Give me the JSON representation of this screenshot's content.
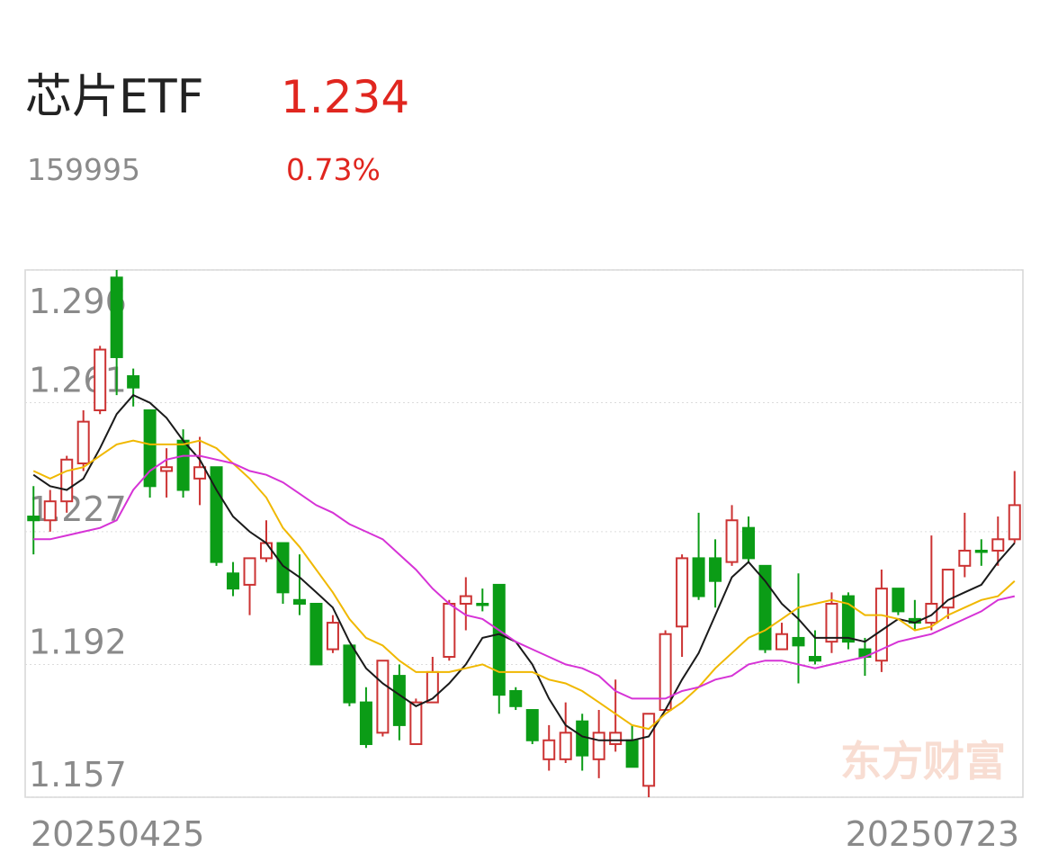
{
  "chart_data": {
    "type": "candlestick",
    "title": "芯片ETF",
    "price": "1.234",
    "code": "159995",
    "change": "0.73%",
    "watermark": "东方财富",
    "categories": [
      "20250425",
      null,
      null,
      null,
      null,
      null,
      null,
      null,
      null,
      null,
      null,
      null,
      null,
      null,
      null,
      null,
      null,
      null,
      null,
      null,
      null,
      null,
      null,
      null,
      null,
      null,
      null,
      null,
      null,
      null,
      null,
      null,
      null,
      null,
      null,
      null,
      null,
      null,
      null,
      null,
      null,
      null,
      null,
      null,
      null,
      null,
      null,
      null,
      null,
      null,
      null,
      null,
      null,
      null,
      null,
      null,
      null,
      null,
      null,
      "20250723"
    ],
    "open": [
      1.231,
      1.23,
      1.235,
      1.245,
      1.259,
      1.294,
      1.268,
      1.259,
      1.243,
      1.251,
      1.241,
      1.244,
      1.216,
      1.213,
      1.22,
      1.224,
      1.209,
      1.208,
      1.196,
      1.197,
      1.182,
      1.174,
      1.189,
      1.171,
      1.182,
      1.194,
      1.208,
      1.208,
      1.213,
      1.185,
      1.18,
      1.167,
      1.167,
      1.177,
      1.167,
      1.171,
      1.172,
      1.16,
      1.18,
      1.202,
      1.22,
      1.22,
      1.219,
      1.228,
      1.218,
      1.196,
      1.199,
      1.194,
      1.198,
      1.21,
      1.196,
      1.193,
      1.212,
      1.204,
      1.203,
      1.207,
      1.218,
      1.222,
      1.222,
      1.225
    ],
    "high": [
      1.239,
      1.238,
      1.247,
      1.259,
      1.276,
      1.296,
      1.27,
      1.259,
      1.249,
      1.254,
      1.252,
      1.244,
      1.219,
      1.22,
      1.23,
      1.224,
      1.221,
      1.208,
      1.205,
      1.197,
      1.186,
      1.193,
      1.192,
      1.183,
      1.194,
      1.209,
      1.215,
      1.212,
      1.213,
      1.186,
      1.18,
      1.176,
      1.182,
      1.179,
      1.18,
      1.188,
      1.176,
      1.179,
      1.201,
      1.221,
      1.232,
      1.225,
      1.234,
      1.231,
      1.218,
      1.203,
      1.216,
      1.201,
      1.211,
      1.211,
      1.199,
      1.217,
      1.212,
      1.209,
      1.226,
      1.217,
      1.232,
      1.225,
      1.231,
      1.243
    ],
    "low": [
      1.221,
      1.227,
      1.232,
      1.243,
      1.258,
      1.263,
      1.26,
      1.236,
      1.236,
      1.236,
      1.234,
      1.218,
      1.21,
      1.205,
      1.219,
      1.208,
      1.205,
      1.192,
      1.195,
      1.181,
      1.17,
      1.173,
      1.172,
      1.171,
      1.182,
      1.193,
      1.201,
      1.206,
      1.179,
      1.18,
      1.171,
      1.164,
      1.166,
      1.164,
      1.162,
      1.169,
      1.165,
      1.157,
      1.18,
      1.194,
      1.209,
      1.207,
      1.218,
      1.219,
      1.195,
      1.196,
      1.187,
      1.192,
      1.195,
      1.196,
      1.189,
      1.19,
      1.205,
      1.201,
      1.201,
      1.204,
      1.215,
      1.218,
      1.218,
      1.224
    ],
    "close": [
      1.23,
      1.235,
      1.246,
      1.256,
      1.275,
      1.273,
      1.265,
      1.239,
      1.244,
      1.238,
      1.244,
      1.219,
      1.212,
      1.22,
      1.224,
      1.211,
      1.208,
      1.192,
      1.203,
      1.182,
      1.171,
      1.193,
      1.176,
      1.182,
      1.19,
      1.208,
      1.21,
      1.208,
      1.184,
      1.181,
      1.172,
      1.172,
      1.174,
      1.168,
      1.174,
      1.174,
      1.165,
      1.179,
      1.2,
      1.22,
      1.21,
      1.214,
      1.23,
      1.22,
      1.196,
      1.2,
      1.197,
      1.193,
      1.208,
      1.198,
      1.194,
      1.212,
      1.206,
      1.203,
      1.208,
      1.217,
      1.222,
      1.222,
      1.225,
      1.234
    ],
    "up_color": "#cc3333",
    "down_color": "#0b9c16",
    "series": [
      {
        "color": "#1a1a1a",
        "values": [
          1.242,
          1.239,
          1.238,
          1.241,
          1.249,
          1.258,
          1.263,
          1.261,
          1.257,
          1.251,
          1.246,
          1.238,
          1.231,
          1.227,
          1.224,
          1.218,
          1.215,
          1.211,
          1.207,
          1.198,
          1.191,
          1.187,
          1.184,
          1.181,
          1.183,
          1.187,
          1.192,
          1.199,
          1.2,
          1.198,
          1.192,
          1.183,
          1.176,
          1.173,
          1.172,
          1.172,
          1.172,
          1.173,
          1.18,
          1.188,
          1.195,
          1.205,
          1.215,
          1.219,
          1.214,
          1.208,
          1.204,
          1.199,
          1.199,
          1.199,
          1.198,
          1.201,
          1.204,
          1.203,
          1.205,
          1.209,
          1.211,
          1.213,
          1.219,
          1.224
        ]
      },
      {
        "color": "#f0b800",
        "values": [
          1.243,
          1.241,
          1.243,
          1.244,
          1.247,
          1.25,
          1.251,
          1.25,
          1.25,
          1.25,
          1.251,
          1.249,
          1.245,
          1.241,
          1.236,
          1.228,
          1.223,
          1.217,
          1.211,
          1.204,
          1.199,
          1.197,
          1.193,
          1.19,
          1.19,
          1.19,
          1.191,
          1.192,
          1.19,
          1.19,
          1.19,
          1.188,
          1.187,
          1.185,
          1.182,
          1.179,
          1.176,
          1.175,
          1.179,
          1.182,
          1.186,
          1.191,
          1.195,
          1.199,
          1.201,
          1.204,
          1.207,
          1.208,
          1.209,
          1.208,
          1.205,
          1.205,
          1.204,
          1.201,
          1.202,
          1.205,
          1.207,
          1.209,
          1.21,
          1.214
        ]
      },
      {
        "color": "#d633d6",
        "values": [
          1.225,
          1.225,
          1.226,
          1.227,
          1.228,
          1.23,
          1.238,
          1.243,
          1.246,
          1.247,
          1.247,
          1.246,
          1.245,
          1.243,
          1.242,
          1.24,
          1.237,
          1.234,
          1.232,
          1.229,
          1.227,
          1.225,
          1.221,
          1.217,
          1.212,
          1.208,
          1.205,
          1.204,
          1.201,
          1.198,
          1.196,
          1.194,
          1.192,
          1.191,
          1.189,
          1.185,
          1.183,
          1.183,
          1.183,
          1.185,
          1.186,
          1.188,
          1.189,
          1.192,
          1.193,
          1.193,
          1.192,
          1.191,
          1.192,
          1.193,
          1.194,
          1.196,
          1.198,
          1.199,
          1.2,
          1.202,
          1.204,
          1.206,
          1.209,
          1.21
        ]
      }
    ],
    "ylim": [
      1.157,
      1.296
    ],
    "yticks": [
      1.157,
      1.192,
      1.227,
      1.261,
      1.296
    ],
    "grid": true
  }
}
